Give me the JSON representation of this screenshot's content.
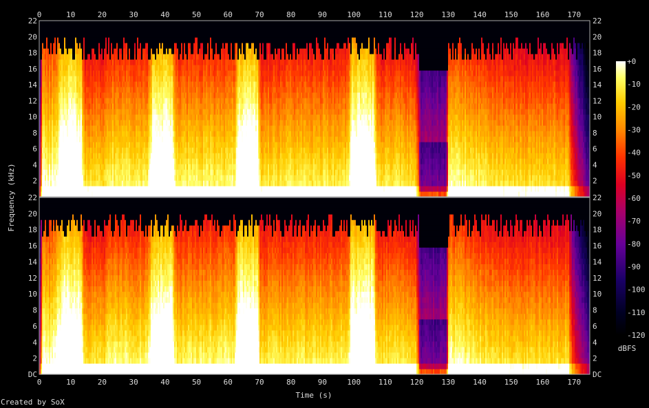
{
  "chart_data": {
    "type": "heatmap",
    "title": "",
    "xlabel": "Time (s)",
    "ylabel": "Frequency (kHz)",
    "x_ticks": [
      "0",
      "10",
      "20",
      "30",
      "40",
      "50",
      "60",
      "70",
      "80",
      "90",
      "100",
      "110",
      "120",
      "130",
      "140",
      "150",
      "160",
      "170"
    ],
    "xlim": [
      0,
      175
    ],
    "y_ticks": [
      "DC",
      "2",
      "4",
      "6",
      "8",
      "10",
      "12",
      "14",
      "16",
      "18",
      "20",
      "22"
    ],
    "ylim": [
      0,
      22
    ],
    "channels": [
      {
        "name": "",
        "cutoff_khz": 20
      },
      {
        "name": "",
        "cutoff_khz": 20
      }
    ],
    "energy_profile": [
      {
        "t": 0,
        "level": 0.3
      },
      {
        "t": 1,
        "level": 0.9
      },
      {
        "t": 2,
        "level": 0.78
      },
      {
        "t": 5,
        "level": 0.82
      },
      {
        "t": 7,
        "level": 0.95
      },
      {
        "t": 13,
        "level": 0.95
      },
      {
        "t": 14,
        "level": 0.72
      },
      {
        "t": 20,
        "level": 0.7
      },
      {
        "t": 22,
        "level": 0.76
      },
      {
        "t": 34,
        "level": 0.75
      },
      {
        "t": 36,
        "level": 0.95
      },
      {
        "t": 42,
        "level": 0.95
      },
      {
        "t": 43,
        "level": 0.74
      },
      {
        "t": 62,
        "level": 0.76
      },
      {
        "t": 63,
        "level": 0.95
      },
      {
        "t": 69,
        "level": 0.95
      },
      {
        "t": 70,
        "level": 0.72
      },
      {
        "t": 98,
        "level": 0.74
      },
      {
        "t": 99,
        "level": 0.95
      },
      {
        "t": 106,
        "level": 0.95
      },
      {
        "t": 107,
        "level": 0.72
      },
      {
        "t": 119,
        "level": 0.72
      },
      {
        "t": 120,
        "level": 0.62
      },
      {
        "t": 121,
        "level": 0.35
      },
      {
        "t": 129,
        "level": 0.35
      },
      {
        "t": 130,
        "level": 0.8
      },
      {
        "t": 140,
        "level": 0.74
      },
      {
        "t": 150,
        "level": 0.7
      },
      {
        "t": 160,
        "level": 0.7
      },
      {
        "t": 168,
        "level": 0.7
      },
      {
        "t": 169,
        "level": 0.5
      },
      {
        "t": 171,
        "level": 0.35
      },
      {
        "t": 175,
        "level": 0.1
      }
    ],
    "colorbar": {
      "label": "dBFS",
      "ticks": [
        "+0",
        "-10",
        "-20",
        "-30",
        "-40",
        "-50",
        "-60",
        "-70",
        "-80",
        "-90",
        "-100",
        "-110",
        "-120"
      ],
      "range": [
        -120,
        0
      ]
    },
    "credit": "Created by SoX"
  }
}
